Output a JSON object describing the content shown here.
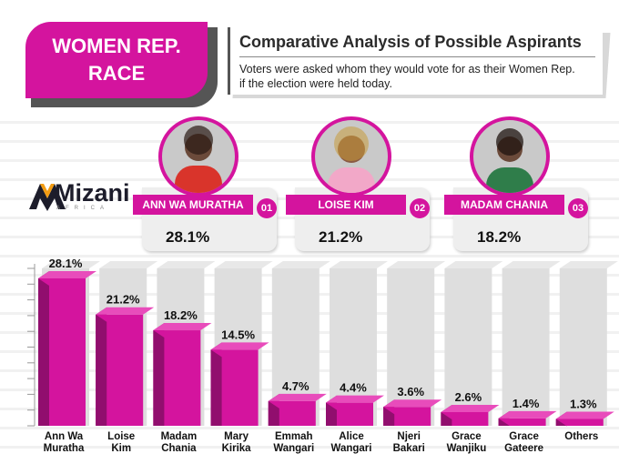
{
  "badge": {
    "line1": "WOMEN REP.",
    "line2": "RACE"
  },
  "header": {
    "title": "Comparative Analysis of Possible Aspirants",
    "subtitle_line1": "Voters were asked whom they would vote for as their Women Rep.",
    "subtitle_line2": "if the election were held today."
  },
  "logo": {
    "name": "Mizani",
    "sub": "AFRICA"
  },
  "top_candidates": [
    {
      "name": "ANN WA MURATHA",
      "rank": "01",
      "percent": "28.1%"
    },
    {
      "name": "LOISE KIM",
      "rank": "02",
      "percent": "21.2%"
    },
    {
      "name": "MADAM CHANIA",
      "rank": "03",
      "percent": "18.2%"
    }
  ],
  "colors": {
    "accent": "#d4149e",
    "bar_front": "#d4149e",
    "bar_side": "#8a0d68",
    "bar_top": "#e84cbb",
    "bg_column": "#dedede"
  },
  "chart_data": {
    "type": "bar",
    "title": "",
    "xlabel": "",
    "ylabel": "",
    "ylim": [
      0,
      30
    ],
    "grid": true,
    "categories": [
      [
        "Ann Wa",
        "Muratha"
      ],
      [
        "Loise",
        "Kim"
      ],
      [
        "Madam",
        "Chania"
      ],
      [
        "Mary",
        "Kirika"
      ],
      [
        "Emmah",
        "Wangari"
      ],
      [
        "Alice",
        "Wangari"
      ],
      [
        "Njeri",
        "Bakari"
      ],
      [
        "Grace",
        "Wanjiku"
      ],
      [
        "Grace",
        "Gateere"
      ],
      [
        "Others"
      ]
    ],
    "values": [
      28.1,
      21.2,
      18.2,
      14.5,
      4.7,
      4.4,
      3.6,
      2.6,
      1.4,
      1.3
    ],
    "labels": [
      "28.1%",
      "21.2%",
      "18.2%",
      "14.5%",
      "4.7%",
      "4.4%",
      "3.6%",
      "2.6%",
      "1.4%",
      "1.3%"
    ]
  }
}
